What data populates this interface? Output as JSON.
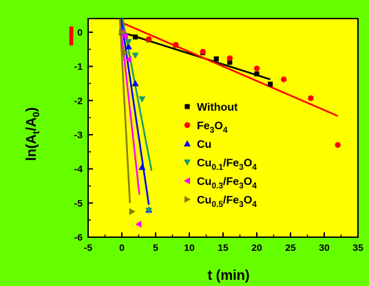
{
  "chart_data": {
    "type": "scatter",
    "title": "",
    "panel_label": "I",
    "xlabel": "t (min)",
    "ylabel": {
      "main": "ln(A",
      "sub1": "t",
      "mid": "/A",
      "sub2": "0",
      "end": ")"
    },
    "xlim": [
      -5,
      35
    ],
    "ylim": [
      -6,
      0.4
    ],
    "xticks": [
      "-5",
      "0",
      "5",
      "10",
      "15",
      "20",
      "25",
      "30",
      "35"
    ],
    "yticks": [
      "0",
      "-1",
      "-2",
      "-3",
      "-4",
      "-5",
      "-6"
    ],
    "grid": false,
    "legend": "center-right",
    "background": "#ffff00",
    "outer_background": "#66ff00",
    "series": [
      {
        "name": [
          {
            "t": "Without"
          }
        ],
        "marker": "square",
        "color": "#000000",
        "x": [
          0,
          2,
          4,
          8,
          12,
          14,
          16,
          20,
          22
        ],
        "y": [
          0,
          -0.14,
          -0.22,
          -0.38,
          -0.6,
          -0.78,
          -0.88,
          -1.22,
          -1.52
        ],
        "fit": [
          [
            0,
            0
          ],
          [
            22,
            -1.38
          ]
        ]
      },
      {
        "name": [
          {
            "t": "Fe"
          },
          {
            "t": "3",
            "sub": true
          },
          {
            "t": "O"
          },
          {
            "t": "4",
            "sub": true
          }
        ],
        "marker": "circle",
        "color": "#ff0000",
        "x": [
          0,
          4,
          8,
          12,
          16,
          20,
          24,
          28,
          32
        ],
        "y": [
          0,
          -0.2,
          -0.37,
          -0.57,
          -0.76,
          -1.06,
          -1.38,
          -1.93,
          -3.3
        ],
        "fit": [
          [
            0,
            0.28
          ],
          [
            32,
            -2.45
          ]
        ]
      },
      {
        "name": [
          {
            "t": "Cu"
          }
        ],
        "marker": "triangle-up",
        "color": "#0000ff",
        "x": [
          0,
          1,
          2,
          3,
          4
        ],
        "y": [
          0,
          -0.42,
          -1.5,
          -3.95,
          -5.2
        ],
        "fit": [
          [
            -0.1,
            0.4
          ],
          [
            4,
            -5.05
          ]
        ]
      },
      {
        "name": [
          {
            "t": "Cu"
          },
          {
            "t": "0.1",
            "sub": true
          },
          {
            "t": "/Fe"
          },
          {
            "t": "3",
            "sub": true
          },
          {
            "t": "O"
          },
          {
            "t": "4",
            "sub": true
          }
        ],
        "marker": "triangle-down",
        "color": "#1a9a6b",
        "x": [
          0,
          1,
          2,
          3,
          4
        ],
        "y": [
          0,
          -0.28,
          -0.68,
          -1.96,
          -5.22
        ],
        "fit": [
          [
            0.1,
            0.4
          ],
          [
            4.4,
            -4.05
          ]
        ]
      },
      {
        "name": [
          {
            "t": "Cu"
          },
          {
            "t": "0.3",
            "sub": true
          },
          {
            "t": "/Fe"
          },
          {
            "t": "3",
            "sub": true
          },
          {
            "t": "O"
          },
          {
            "t": "4",
            "sub": true
          }
        ],
        "marker": "triangle-left",
        "color": "#ff00ff",
        "x": [
          0,
          0.5,
          1,
          2.5
        ],
        "y": [
          0,
          -0.12,
          -0.8,
          -5.62
        ],
        "fit": [
          [
            -0.3,
            0.4
          ],
          [
            2.6,
            -4.75
          ]
        ]
      },
      {
        "name": [
          {
            "t": "Cu"
          },
          {
            "t": "0.5",
            "sub": true
          },
          {
            "t": "/Fe"
          },
          {
            "t": "3",
            "sub": true
          },
          {
            "t": "O"
          },
          {
            "t": "4",
            "sub": true
          }
        ],
        "marker": "triangle-right",
        "color": "#808000",
        "x": [
          0,
          0.5,
          1.5
        ],
        "y": [
          0,
          -0.6,
          -5.25
        ],
        "fit": [
          [
            -0.3,
            0.4
          ],
          [
            1.2,
            -5.0
          ]
        ]
      }
    ]
  }
}
